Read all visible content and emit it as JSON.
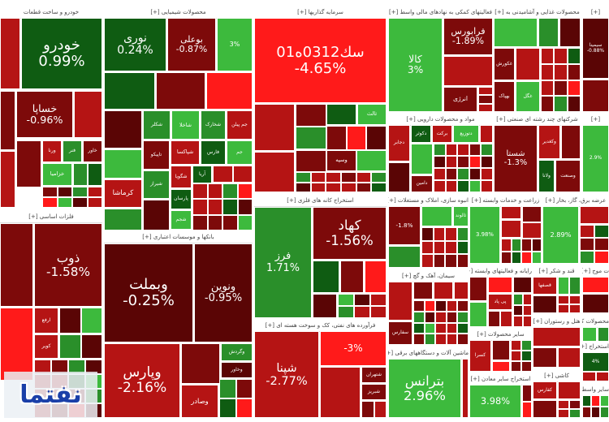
{
  "colors": {
    "dr2": "#5a0505",
    "dr": "#7d0a0a",
    "r": "#b51414",
    "br": "#ff1a1a",
    "dg": "#0f5c12",
    "g": "#2a8f2a",
    "lg": "#3dba3d"
  },
  "logo_text": "نفتما",
  "sectors": [
    {
      "title": "خودرو و ساخت قطعات",
      "tiles": [
        {
          "label": "خودرو",
          "change": "0.99%",
          "tone": "dg"
        },
        {
          "label": "خساپا",
          "change": "-0.96%",
          "tone": "dr"
        },
        {
          "label": "ورنا",
          "change": "",
          "tone": "r"
        },
        {
          "label": "فنر",
          "change": "",
          "tone": "g"
        },
        {
          "label": "خاور",
          "change": "",
          "tone": "dr"
        },
        {
          "label": "خزامیا",
          "change": "",
          "tone": "lg"
        }
      ]
    },
    {
      "title": "محصولات شیمیایی [+]",
      "tiles": [
        {
          "label": "نوری",
          "change": "0.24%",
          "tone": "dg"
        },
        {
          "label": "بوعلی",
          "change": "-0.87%",
          "tone": "dr"
        },
        {
          "label": "",
          "change": "3%",
          "tone": "lg"
        },
        {
          "label": "شکلر",
          "change": "",
          "tone": "g"
        },
        {
          "label": "شاخلا",
          "change": "",
          "tone": "lg"
        },
        {
          "label": "شخارک",
          "change": "",
          "tone": "g"
        },
        {
          "label": "جم پیلن",
          "change": "",
          "tone": "r"
        },
        {
          "label": "تاپیکو",
          "change": "",
          "tone": "dr"
        },
        {
          "label": "شپاکسا",
          "change": "",
          "tone": "r"
        },
        {
          "label": "فارس",
          "change": "",
          "tone": "dg"
        },
        {
          "label": "جم",
          "change": "",
          "tone": "lg"
        },
        {
          "label": "کرماشا",
          "change": "",
          "tone": "r"
        },
        {
          "label": "شیراز",
          "change": "",
          "tone": "g"
        },
        {
          "label": "شگویا",
          "change": "",
          "tone": "r"
        },
        {
          "label": "آریا",
          "change": "",
          "tone": "dg"
        },
        {
          "label": "پارسان",
          "change": "",
          "tone": "dg"
        },
        {
          "label": "شجم",
          "change": "",
          "tone": "lg"
        }
      ]
    },
    {
      "title": "سرمایه گذاریها [+]",
      "tiles": [
        {
          "label": "سك0312ه01",
          "change": "-4.65%",
          "tone": "br"
        },
        {
          "label": "ثالث",
          "change": "",
          "tone": "lg"
        },
        {
          "label": "وسپه",
          "change": "",
          "tone": "dr"
        }
      ]
    },
    {
      "title": "فعالیتهای کمکی به نهادهای مالی واسط [+]",
      "tiles": [
        {
          "label": "کالا",
          "change": "3%",
          "tone": "lg"
        },
        {
          "label": "فرابورس",
          "change": "-1.89%",
          "tone": "dr"
        },
        {
          "label": "انرژی",
          "change": "",
          "tone": "dr"
        }
      ]
    },
    {
      "title": "محصولات غذایی و آشامیدنی به [+]",
      "tiles": [
        {
          "label": "غکورش",
          "change": "",
          "tone": "dr"
        },
        {
          "label": "بهپاک",
          "change": "",
          "tone": "dr"
        },
        {
          "label": "غگل",
          "change": "",
          "tone": "lg"
        }
      ]
    },
    {
      "title": "[+]",
      "tiles": [
        {
          "label": "سیمینا",
          "change": "-0.88%",
          "tone": "dr2"
        }
      ]
    },
    {
      "title": "مواد و محصولات دارویی [+]",
      "tiles": [
        {
          "label": "دجابر",
          "change": "",
          "tone": "r"
        },
        {
          "label": "دکوثر",
          "change": "",
          "tone": "dg"
        },
        {
          "label": "برکت",
          "change": "",
          "tone": "r"
        },
        {
          "label": "دتوزیع",
          "change": "",
          "tone": "lg"
        },
        {
          "label": "دامین",
          "change": "",
          "tone": "dr"
        }
      ]
    },
    {
      "title": "شرکتهای چند رشته ای صنعتی [+]",
      "tiles": [
        {
          "label": "شستا",
          "change": "-1.3%",
          "tone": "dr"
        },
        {
          "label": "وکغدیر",
          "change": "",
          "tone": "r"
        },
        {
          "label": "ولانا",
          "change": "",
          "tone": "dg"
        },
        {
          "label": "وصنعت",
          "change": "",
          "tone": "dr"
        }
      ]
    },
    {
      "title": "[+]",
      "tiles": [
        {
          "label": "",
          "change": "2.9%",
          "tone": "lg"
        }
      ]
    },
    {
      "title": "استخراج کانه های فلزی [+]",
      "tiles": [
        {
          "label": "فرز",
          "change": "1.71%",
          "tone": "g"
        },
        {
          "label": "کهاد",
          "change": "-1.56%",
          "tone": "dr"
        }
      ]
    },
    {
      "title": "فلزات اساسی [+]",
      "tiles": [
        {
          "label": "ذوب",
          "change": "-1.58%",
          "tone": "dr"
        },
        {
          "label": "ارفع",
          "change": "",
          "tone": "r"
        },
        {
          "label": "کویر",
          "change": "",
          "tone": "r"
        }
      ]
    },
    {
      "title": "بانکها و موسسات اعتباری [+]",
      "tiles": [
        {
          "label": "وبملت",
          "change": "-0.25%",
          "tone": "dr2"
        },
        {
          "label": "ونوین",
          "change": "-0.95%",
          "tone": "dr2"
        },
        {
          "label": "وپارس",
          "change": "-2.16%",
          "tone": "r"
        },
        {
          "label": "وگردش",
          "change": "",
          "tone": "g"
        },
        {
          "label": "وخاور",
          "change": "",
          "tone": "dr2"
        },
        {
          "label": "وصادر",
          "change": "",
          "tone": "r"
        }
      ]
    },
    {
      "title": "فرآورده های نفتی، کک و سوخت هسته ای [+]",
      "tiles": [
        {
          "label": "شپنا",
          "change": "-2.77%",
          "tone": "r"
        },
        {
          "label": "",
          "change": "-3%",
          "tone": "br"
        },
        {
          "label": "شتهران",
          "change": "",
          "tone": "dr"
        },
        {
          "label": "شبریز",
          "change": "",
          "tone": "dr"
        }
      ]
    },
    {
      "title": "انبوه سازی، املاک و مستغلات [+]",
      "tiles": [
        {
          "label": "",
          "change": "-1.8%",
          "tone": "dr"
        },
        {
          "label": "ثالوند",
          "change": "",
          "tone": "lg"
        }
      ]
    },
    {
      "title": "زراعت و خدمات وابسته [+]",
      "tiles": [
        {
          "label": "",
          "change": "3.98%",
          "tone": "lg"
        }
      ]
    },
    {
      "title": "عرضه برق، گاز، بخار [+]",
      "tiles": [
        {
          "label": "",
          "change": "2.89%",
          "tone": "lg"
        }
      ]
    },
    {
      "title": "سیمان، آهک و گچ [+]",
      "tiles": [
        {
          "label": "سفارس",
          "change": "",
          "tone": "dr"
        }
      ]
    },
    {
      "title": "ماشین آلات و دستگاههای برقی [+]",
      "tiles": [
        {
          "label": "بترانس",
          "change": "2.96%",
          "tone": "lg"
        }
      ]
    },
    {
      "title": "رایانه و فعالیتهای وابسته [+]",
      "tiles": [
        {
          "label": "پی پاد",
          "change": "",
          "tone": "r"
        }
      ]
    },
    {
      "title": "قند و شکر [+]",
      "tiles": [
        {
          "label": "قصفها",
          "change": "",
          "tone": "r"
        }
      ]
    },
    {
      "title": "ت موج [+]",
      "tiles": []
    },
    {
      "title": "سایر محصولات [+]",
      "tiles": [
        {
          "label": "کسرا",
          "change": "",
          "tone": "r"
        }
      ]
    },
    {
      "title": "هتل و رستوران [+]",
      "tiles": []
    },
    {
      "title": "محصولات کاغذی [+]",
      "tiles": []
    },
    {
      "title": "استخراج سایر معادن [+]",
      "tiles": [
        {
          "label": "",
          "change": "3.98%",
          "tone": "lg"
        }
      ]
    },
    {
      "title": "کاشی [+]",
      "tiles": [
        {
          "label": "کفارس",
          "change": "",
          "tone": "r"
        }
      ]
    },
    {
      "title": "استخراج [+]",
      "tiles": [
        {
          "label": "",
          "change": "4%",
          "tone": "dg"
        }
      ]
    },
    {
      "title": "سایر واسط [+]",
      "tiles": []
    }
  ]
}
